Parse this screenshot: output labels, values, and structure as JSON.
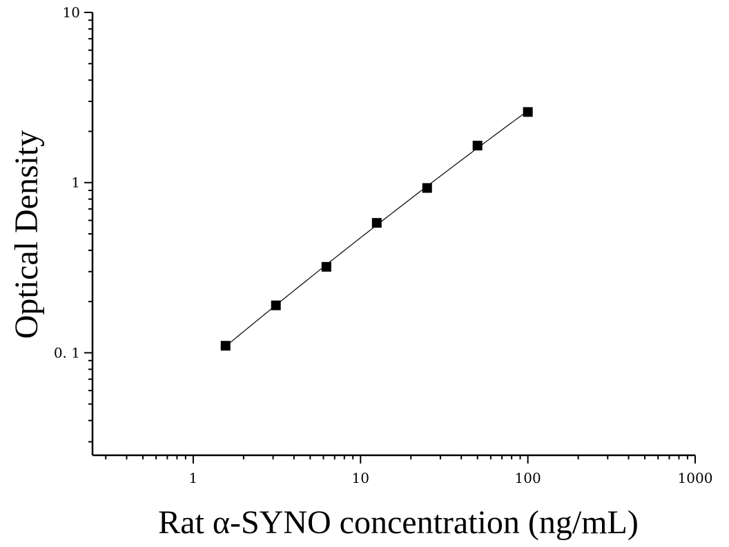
{
  "chart_data": {
    "type": "scatter",
    "title": "",
    "xlabel": "Rat α-SYNO concentration (ng/mL)",
    "ylabel": "Optical Density",
    "x_scale": "log",
    "y_scale": "log",
    "xlim": [
      0.25,
      1000
    ],
    "ylim": [
      0.025,
      10
    ],
    "x_ticks": [
      {
        "value": 1,
        "label": "1"
      },
      {
        "value": 10,
        "label": "10"
      },
      {
        "value": 100,
        "label": "100"
      },
      {
        "value": 1000,
        "label": "1000"
      }
    ],
    "y_ticks": [
      {
        "value": 0.1,
        "label": "0. 1"
      },
      {
        "value": 1,
        "label": "1"
      },
      {
        "value": 10,
        "label": "10"
      }
    ],
    "grid": false,
    "series": [
      {
        "marker": "square",
        "x": [
          1.56,
          3.12,
          6.25,
          12.5,
          25,
          50,
          100
        ],
        "y": [
          0.11,
          0.19,
          0.32,
          0.58,
          0.93,
          1.65,
          2.6
        ]
      }
    ],
    "fit_curve": true,
    "colors": {
      "marks": "#000000",
      "background": "#ffffff"
    }
  }
}
